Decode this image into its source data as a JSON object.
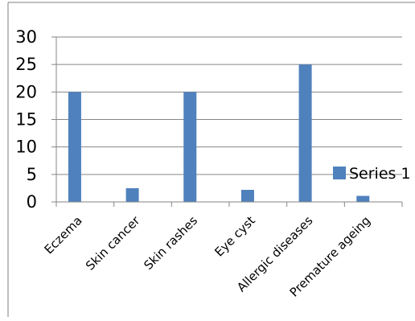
{
  "chart_data": {
    "type": "bar",
    "categories": [
      "Eczema",
      "Skin cancer",
      "Skin rashes",
      "Eye cyst",
      "Allergic diseases",
      "Premature ageing"
    ],
    "series": [
      {
        "name": "Series 1",
        "values": [
          20,
          2.5,
          20,
          2.2,
          25,
          1.1
        ]
      }
    ],
    "ylim": [
      0,
      30
    ],
    "yticks": [
      0,
      5,
      10,
      15,
      20,
      25,
      30
    ],
    "grid": true,
    "legend": "right",
    "colors": {
      "bar": "#4f81bd",
      "grid": "#868686",
      "axis": "#868686",
      "border": "#7f7f7f"
    },
    "title": "",
    "xlabel": "",
    "ylabel": ""
  }
}
